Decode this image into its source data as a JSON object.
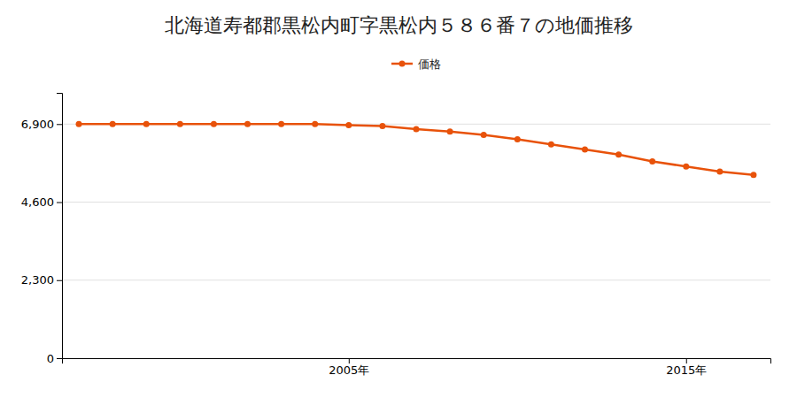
{
  "chart_data": {
    "type": "line",
    "title": "北海道寿都郡黒松内町字黒松内５８６番７の地価推移",
    "x": [
      1997,
      1998,
      1999,
      2000,
      2001,
      2002,
      2003,
      2004,
      2005,
      2006,
      2007,
      2008,
      2009,
      2010,
      2011,
      2012,
      2013,
      2014,
      2015,
      2016,
      2017
    ],
    "series": [
      {
        "name": "価格",
        "color": "#e8520a",
        "marker": "circle",
        "values": [
          6900,
          6900,
          6900,
          6900,
          6900,
          6900,
          6900,
          6900,
          6870,
          6840,
          6750,
          6680,
          6580,
          6450,
          6300,
          6150,
          6000,
          5800,
          5650,
          5500,
          5400
        ]
      }
    ],
    "xlim": [
      1996.5,
      2017.5
    ],
    "xticks": [
      {
        "value": 2005,
        "label": "2005年"
      },
      {
        "value": 2015,
        "label": "2015年"
      }
    ],
    "ylim": [
      0,
      7820
    ],
    "yticks": [
      0,
      {
        "value": 2300,
        "label": "2,300"
      },
      {
        "value": 4600,
        "label": "4,600"
      },
      {
        "value": 6900,
        "label": "6,900"
      }
    ],
    "grid": true,
    "legend": "top"
  }
}
